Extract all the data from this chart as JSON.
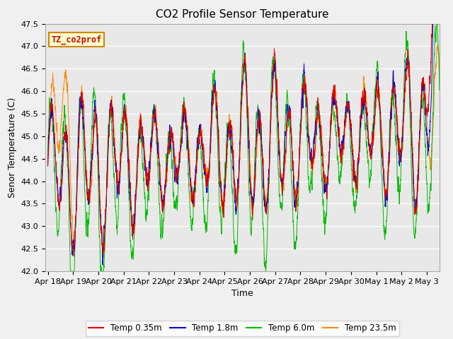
{
  "title": "CO2 Profile Sensor Temperature",
  "ylabel": "Senor Temperature (C)",
  "xlabel": "Time",
  "legend_label": "TZ_co2prof",
  "ylim": [
    42.0,
    47.5
  ],
  "legend_entries": [
    "Temp 0.35m",
    "Temp 1.8m",
    "Temp 6.0m",
    "Temp 23.5m"
  ],
  "colors": [
    "#dd0000",
    "#0000cc",
    "#00bb00",
    "#ff8800"
  ],
  "background_color": "#e8e8e8",
  "grid_color": "#ffffff",
  "title_fontsize": 11,
  "axis_fontsize": 9,
  "tick_fontsize": 8,
  "xtick_labels": [
    "Apr 18",
    "Apr 19",
    "Apr 20",
    "Apr 21",
    "Apr 22",
    "Apr 23",
    "Apr 24",
    "Apr 25",
    "Apr 26",
    "Apr 27",
    "Apr 28",
    "Apr 29",
    "Apr 30",
    "May 1",
    "May 2",
    "May 3"
  ],
  "n_days": 15.5,
  "n_points": 3000
}
